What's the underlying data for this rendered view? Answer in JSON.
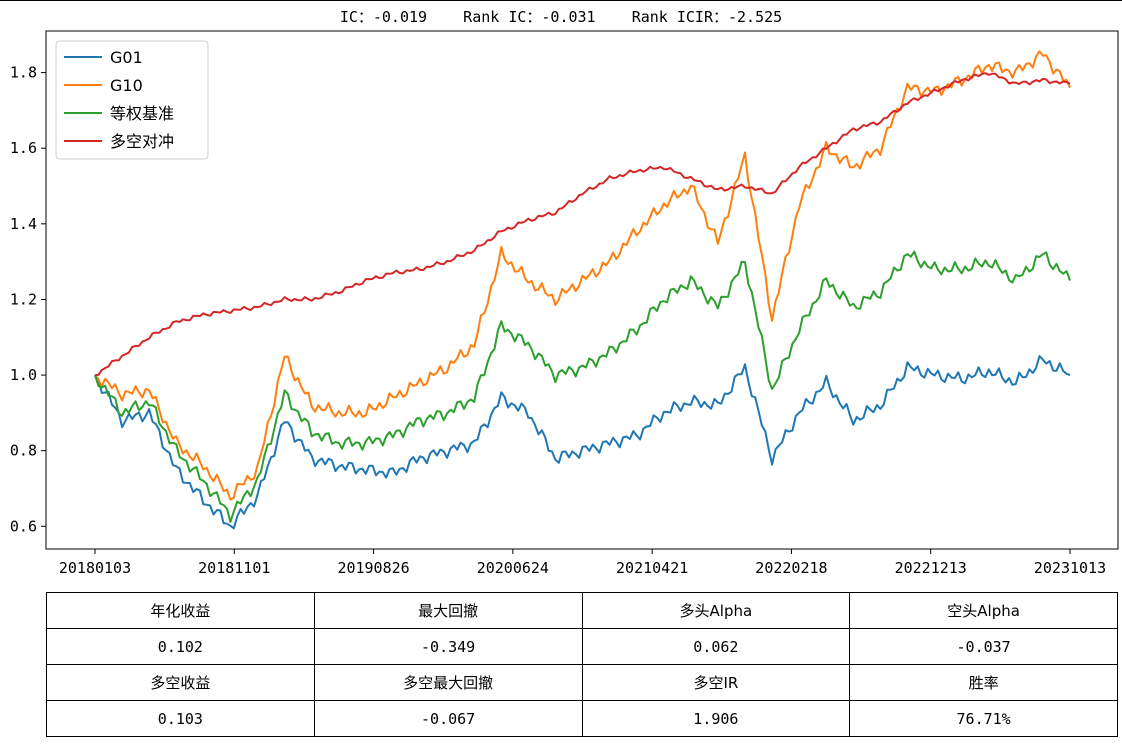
{
  "title": "IC：-0.019    Rank IC：-0.031    Rank ICIR：-2.525",
  "chart_data": {
    "type": "line",
    "title": "IC：-0.019    Rank IC：-0.031    Rank ICIR：-2.525",
    "xlabel": "",
    "ylabel": "",
    "x_ticks": [
      "20180103",
      "20181101",
      "20190826",
      "20200624",
      "20210421",
      "20220218",
      "20221213",
      "20231013"
    ],
    "y_ticks": [
      "0.6",
      "0.8",
      "1.0",
      "1.2",
      "1.4",
      "1.6",
      "1.8"
    ],
    "ylim": [
      0.54,
      1.91
    ],
    "grid": false,
    "legend_position": "upper left",
    "x": [
      "2018-01",
      "2018-03",
      "2018-05",
      "2018-07",
      "2018-09",
      "2018-11",
      "2019-01",
      "2019-03",
      "2019-05",
      "2019-07",
      "2019-09",
      "2019-11",
      "2020-01",
      "2020-03",
      "2020-05",
      "2020-07",
      "2020-09",
      "2020-11",
      "2021-01",
      "2021-03",
      "2021-05",
      "2021-07",
      "2021-09",
      "2021-11",
      "2022-01",
      "2022-03",
      "2022-05",
      "2022-07",
      "2022-09",
      "2022-11",
      "2023-01",
      "2023-03",
      "2023-05",
      "2023-07",
      "2023-09",
      "2023-11",
      "2023-12"
    ],
    "series": [
      {
        "name": "G01",
        "color": "#1f77b4",
        "values": [
          1.0,
          0.88,
          0.9,
          0.75,
          0.67,
          0.6,
          0.68,
          0.88,
          0.78,
          0.76,
          0.75,
          0.74,
          0.78,
          0.8,
          0.82,
          0.94,
          0.9,
          0.78,
          0.8,
          0.82,
          0.84,
          0.9,
          0.93,
          0.92,
          1.02,
          0.78,
          0.9,
          0.98,
          0.88,
          0.92,
          1.02,
          1.0,
          0.99,
          1.01,
          0.98,
          1.04,
          1.0
        ]
      },
      {
        "name": "G10",
        "color": "#ff7f0e",
        "values": [
          1.0,
          0.95,
          0.96,
          0.82,
          0.76,
          0.68,
          0.75,
          1.05,
          0.92,
          0.9,
          0.9,
          0.94,
          0.98,
          1.02,
          1.08,
          1.32,
          1.25,
          1.2,
          1.25,
          1.3,
          1.38,
          1.45,
          1.5,
          1.35,
          1.58,
          1.15,
          1.45,
          1.6,
          1.55,
          1.6,
          1.76,
          1.75,
          1.78,
          1.82,
          1.8,
          1.85,
          1.76
        ]
      },
      {
        "name": "等权基准",
        "color": "#2ca02c",
        "values": [
          1.0,
          0.9,
          0.93,
          0.8,
          0.72,
          0.63,
          0.72,
          0.95,
          0.85,
          0.82,
          0.82,
          0.84,
          0.88,
          0.9,
          0.94,
          1.13,
          1.08,
          1.0,
          1.02,
          1.06,
          1.12,
          1.2,
          1.25,
          1.18,
          1.3,
          0.96,
          1.12,
          1.25,
          1.18,
          1.22,
          1.32,
          1.28,
          1.28,
          1.3,
          1.25,
          1.32,
          1.25
        ]
      },
      {
        "name": "多空对冲",
        "color": "#d62728",
        "values": [
          1.0,
          1.05,
          1.1,
          1.14,
          1.16,
          1.17,
          1.18,
          1.2,
          1.2,
          1.22,
          1.25,
          1.27,
          1.28,
          1.3,
          1.33,
          1.38,
          1.41,
          1.43,
          1.48,
          1.52,
          1.54,
          1.55,
          1.52,
          1.49,
          1.5,
          1.48,
          1.55,
          1.6,
          1.65,
          1.67,
          1.72,
          1.75,
          1.78,
          1.8,
          1.77,
          1.78,
          1.77
        ]
      }
    ]
  },
  "table": {
    "rows": [
      [
        "年化收益",
        "最大回撤",
        "多头Alpha",
        "空头Alpha"
      ],
      [
        "0.102",
        "-0.349",
        "0.062",
        "-0.037"
      ],
      [
        "多空收益",
        "多空最大回撤",
        "多空IR",
        "胜率"
      ],
      [
        "0.103",
        "-0.067",
        "1.906",
        "76.71%"
      ]
    ]
  }
}
